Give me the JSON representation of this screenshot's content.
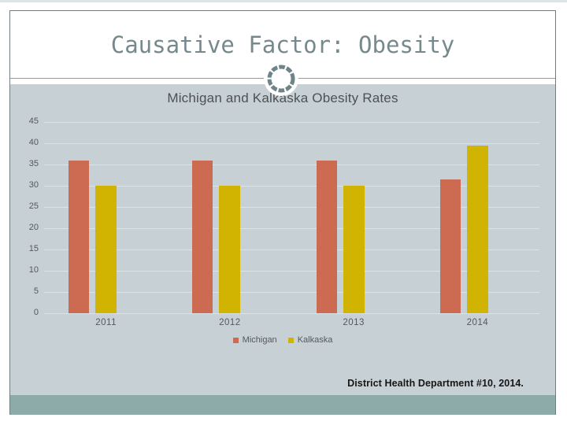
{
  "slide": {
    "title": "Causative Factor: Obesity",
    "citation": "District Health Department #10, 2014.",
    "colors": {
      "frame_border": "#6e7e82",
      "title_text": "#76898d",
      "content_bg": "#c7d0d4",
      "bottom_band": "#8caba9",
      "gridline": "#dce3e6",
      "axis_text": "#55595c",
      "chart_title_text": "#4d5154",
      "michigan_bar": "#cd6a52",
      "kalkaska_bar": "#d1b301"
    }
  },
  "chart_data": {
    "type": "bar",
    "title": "Michigan and Kalkaska Obesity Rates",
    "categories": [
      "2011",
      "2012",
      "2013",
      "2014"
    ],
    "series": [
      {
        "name": "Michigan",
        "color": "#cd6a52",
        "values": [
          36,
          36,
          36,
          31.5
        ]
      },
      {
        "name": "Kalkaska",
        "color": "#d1b301",
        "values": [
          30,
          30,
          30,
          39.5
        ]
      }
    ],
    "xlabel": "",
    "ylabel": "",
    "ylim": [
      0,
      45
    ],
    "yticks": [
      0,
      5,
      10,
      15,
      20,
      25,
      30,
      35,
      40,
      45
    ],
    "grid": true,
    "legend_position": "bottom"
  }
}
